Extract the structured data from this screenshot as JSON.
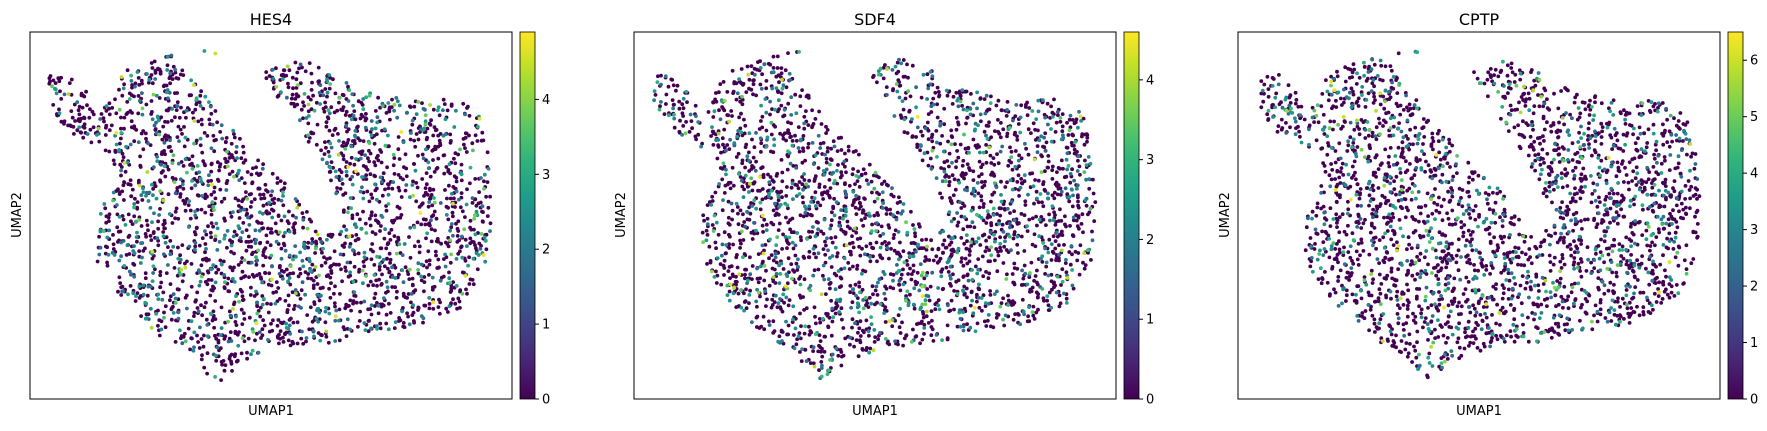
{
  "chart_data": [
    {
      "type": "scatter",
      "title": "HES4",
      "xlabel": "UMAP1",
      "ylabel": "UMAP2",
      "show_ticks": false,
      "grid": false,
      "colormap": "viridis",
      "colorbar": {
        "min": 0,
        "max": 4.9,
        "ticks": [
          0,
          1,
          2,
          3,
          4
        ],
        "tick_labels": [
          "0",
          "1",
          "2",
          "3",
          "4"
        ]
      },
      "seed": 11,
      "n_points": 2600
    },
    {
      "type": "scatter",
      "title": "SDF4",
      "xlabel": "UMAP1",
      "ylabel": "UMAP2",
      "show_ticks": false,
      "grid": false,
      "colormap": "viridis",
      "colorbar": {
        "min": 0,
        "max": 4.6,
        "ticks": [
          0,
          1,
          2,
          3,
          4
        ],
        "tick_labels": [
          "0",
          "1",
          "2",
          "3",
          "4"
        ]
      },
      "seed": 23,
      "n_points": 2600
    },
    {
      "type": "scatter",
      "title": "CPTP",
      "xlabel": "UMAP1",
      "ylabel": "UMAP2",
      "show_ticks": false,
      "grid": false,
      "colormap": "viridis",
      "colorbar": {
        "min": 0,
        "max": 6.5,
        "ticks": [
          0,
          1,
          2,
          3,
          4,
          5,
          6
        ],
        "tick_labels": [
          "0",
          "1",
          "2",
          "3",
          "4",
          "5",
          "6"
        ]
      },
      "seed": 37,
      "n_points": 2600
    }
  ]
}
